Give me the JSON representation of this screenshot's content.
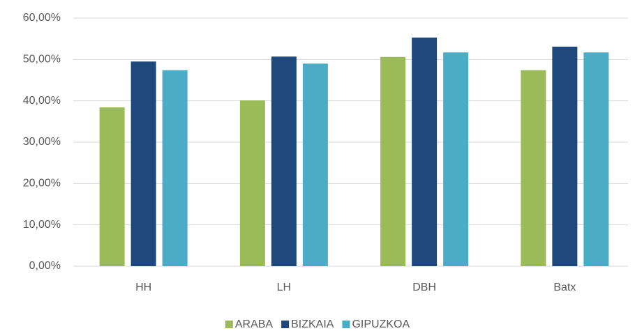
{
  "chart_data": {
    "type": "bar",
    "categories": [
      "HH",
      "LH",
      "DBH",
      "Batx"
    ],
    "series": [
      {
        "name": "ARABA",
        "color": "#9bbb59",
        "values": [
          38.4,
          40.1,
          50.6,
          47.4
        ]
      },
      {
        "name": "BIZKAIA",
        "color": "#1f497d",
        "values": [
          49.5,
          50.7,
          55.3,
          53.1
        ]
      },
      {
        "name": "GIPUZKOA",
        "color": "#4bacc6",
        "values": [
          47.4,
          49.0,
          51.7,
          51.7
        ]
      }
    ],
    "ylim": [
      0,
      60
    ],
    "yticks": [
      {
        "value": 0,
        "label": "0,00%"
      },
      {
        "value": 10,
        "label": "10,00%"
      },
      {
        "value": 20,
        "label": "20,00%"
      },
      {
        "value": 30,
        "label": "30,00%"
      },
      {
        "value": 40,
        "label": "40,00%"
      },
      {
        "value": 50,
        "label": "50,00%"
      },
      {
        "value": 60,
        "label": "60,00%"
      }
    ],
    "grid": true,
    "legend": "bottom"
  }
}
